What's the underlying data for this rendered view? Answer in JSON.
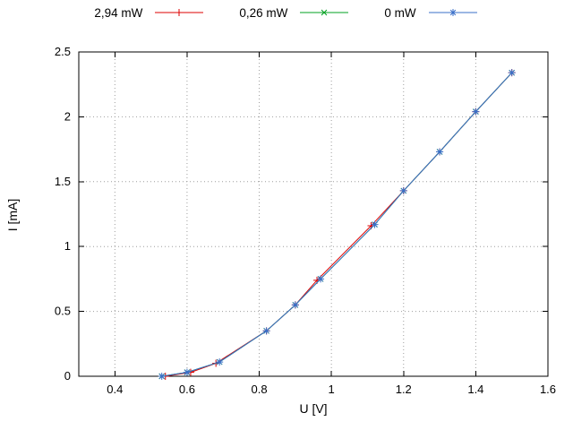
{
  "chart_data": {
    "type": "line",
    "title": "",
    "xlabel": "U [V]",
    "ylabel": "I [mA]",
    "xlim": [
      0.3,
      1.6
    ],
    "ylim": [
      0,
      2.5
    ],
    "grid": true,
    "legend_position": "top-center",
    "xticks": {
      "values": [
        0.4,
        0.6,
        0.8,
        1.0,
        1.2,
        1.4,
        1.6
      ],
      "labels": [
        "0.4",
        "0.6",
        "0.8",
        "1",
        "1.2",
        "1.4",
        "1.6"
      ]
    },
    "yticks": {
      "values": [
        0,
        0.5,
        1.0,
        1.5,
        2.0,
        2.5
      ],
      "labels": [
        "0",
        "0.5",
        "1",
        "1.5",
        "2",
        "2.5"
      ]
    },
    "series": [
      {
        "name": "2,94 mW",
        "color": "#dd0000",
        "marker": "plus",
        "x": [
          0.54,
          0.61,
          0.68,
          0.82,
          0.9,
          0.96,
          1.11,
          1.2,
          1.3,
          1.4,
          1.5
        ],
        "y": [
          0.0,
          0.03,
          0.1,
          0.35,
          0.55,
          0.74,
          1.16,
          1.43,
          1.73,
          2.04,
          2.34
        ]
      },
      {
        "name": "0,26 mW",
        "color": "#00a020",
        "marker": "cross",
        "x": [
          0.53,
          0.6,
          0.69,
          0.82,
          0.9,
          0.97,
          1.12,
          1.2,
          1.3,
          1.4,
          1.5
        ],
        "y": [
          0.0,
          0.03,
          0.11,
          0.35,
          0.55,
          0.75,
          1.17,
          1.43,
          1.73,
          2.04,
          2.34
        ]
      },
      {
        "name": "0 mW",
        "color": "#3a6fc9",
        "marker": "asterisk",
        "x": [
          0.53,
          0.6,
          0.69,
          0.82,
          0.9,
          0.97,
          1.12,
          1.2,
          1.3,
          1.4,
          1.5
        ],
        "y": [
          0.0,
          0.03,
          0.11,
          0.35,
          0.55,
          0.75,
          1.17,
          1.43,
          1.73,
          2.04,
          2.34
        ]
      }
    ]
  }
}
